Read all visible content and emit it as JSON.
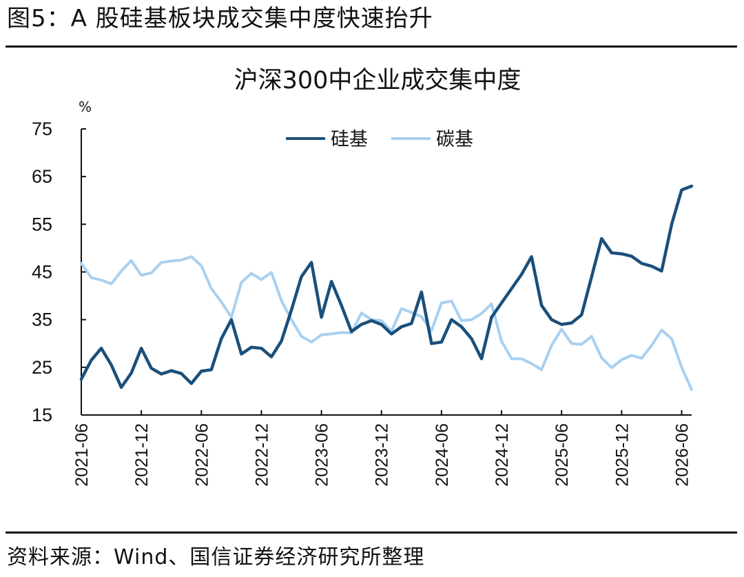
{
  "figure": {
    "title": "图5：A 股硅基板块成交集中度快速抬升",
    "source": "资料来源：Wind、国信证券经济研究所整理"
  },
  "chart_data": {
    "type": "line",
    "title": "沪深300中企业成交集中度",
    "ylabel": "%",
    "xlabel": "",
    "ylim": [
      15,
      75
    ],
    "yticks": [
      15,
      25,
      35,
      45,
      55,
      65,
      75
    ],
    "x_start": "2021-06",
    "x_end": "2026-07",
    "xtick_labels": [
      "2021-06",
      "2021-12",
      "2022-06",
      "2022-12",
      "2023-06",
      "2023-12",
      "2024-06",
      "2024-12",
      "2025-06",
      "2025-12",
      "2026-06"
    ],
    "grid": false,
    "legend_position": "top-center",
    "colors": {
      "硅基": "#1b4f7a",
      "碳基": "#a8d0f0"
    },
    "series": [
      {
        "name": "硅基",
        "values": [
          22.5,
          26.5,
          29.0,
          25.5,
          20.8,
          23.8,
          29.0,
          24.8,
          23.6,
          24.3,
          23.7,
          21.6,
          24.2,
          24.5,
          31.0,
          35.0,
          27.8,
          29.2,
          29.0,
          27.2,
          30.5,
          37.0,
          44.0,
          47.0,
          35.5,
          43.0,
          38.0,
          32.5,
          34.0,
          34.8,
          34.0,
          32.0,
          33.5,
          34.2,
          40.8,
          30.0,
          30.3,
          35.0,
          33.5,
          31.0,
          26.8,
          35.5,
          38.5,
          41.5,
          44.5,
          48.2,
          38.0,
          35.0,
          34.0,
          34.3,
          36.0,
          44.0,
          52.0,
          49.0,
          48.8,
          48.3,
          46.8,
          46.2,
          45.2,
          55.0,
          62.2,
          63.0
        ]
      },
      {
        "name": "碳基",
        "values": [
          46.8,
          43.8,
          43.3,
          42.5,
          45.2,
          47.4,
          44.3,
          44.8,
          47.0,
          47.3,
          47.5,
          48.2,
          46.3,
          41.5,
          38.7,
          35.5,
          42.8,
          44.7,
          43.4,
          44.9,
          39.0,
          35.0,
          31.5,
          30.3,
          31.8,
          32.0,
          32.3,
          32.2,
          36.4,
          35.0,
          34.8,
          32.6,
          37.3,
          36.5,
          35.6,
          32.7,
          38.5,
          38.9,
          34.8,
          35.0,
          36.3,
          38.3,
          30.5,
          26.8,
          26.8,
          25.8,
          24.5,
          29.6,
          33.0,
          30.0,
          29.8,
          31.5,
          27.0,
          24.9,
          26.6,
          27.5,
          26.9,
          29.6,
          32.8,
          31.0,
          25.0,
          20.3
        ]
      }
    ]
  }
}
